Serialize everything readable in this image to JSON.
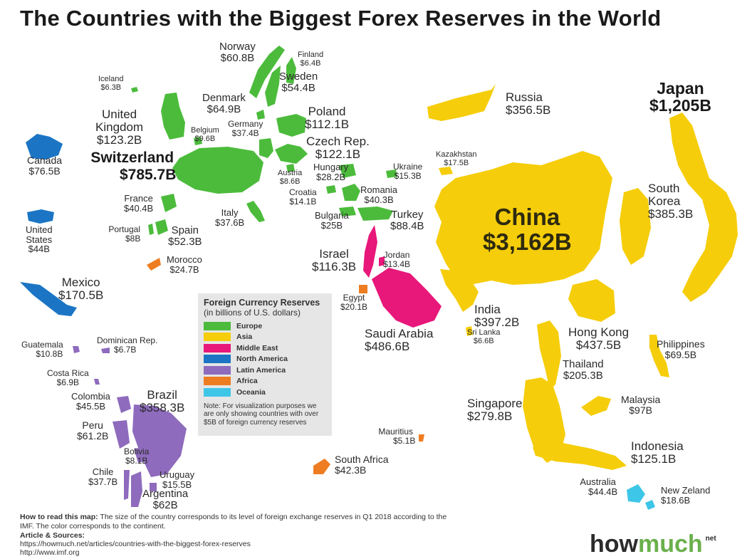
{
  "title": "The Countries with the Biggest Forex Reserves in the World",
  "colors": {
    "europe": "#4cbb3c",
    "asia": "#f5cd0a",
    "middle_east": "#e8177a",
    "north_america": "#1b75c4",
    "latin_america": "#8e6bbd",
    "africa": "#ee7d22",
    "oceania": "#3ec6e8"
  },
  "countries": {
    "norway": {
      "name": "Norway",
      "value": "$60.8B"
    },
    "finland": {
      "name": "Finland",
      "value": "$6.4B"
    },
    "iceland": {
      "name": "Iceland",
      "value": "$6.3B"
    },
    "sweden": {
      "name": "Sweden",
      "value": "$54.4B"
    },
    "denmark": {
      "name": "Denmark",
      "value": "$64.9B"
    },
    "uk": {
      "name1": "United",
      "name2": "Kingdom",
      "value": "$123.2B"
    },
    "germany": {
      "name": "Germany",
      "value": "$37.4B"
    },
    "belgium": {
      "name": "Belgium",
      "value": "$9.6B"
    },
    "poland": {
      "name": "Poland",
      "value": "$112.1B"
    },
    "czech": {
      "name": "Czech Rep.",
      "value": "$122.1B"
    },
    "switzerland": {
      "name": "Switzerland",
      "value": "$785.7B"
    },
    "austria": {
      "name": "Austria",
      "value": "$8.6B"
    },
    "hungary": {
      "name": "Hungary",
      "value": "$28.2B"
    },
    "ukraine": {
      "name": "Ukraine",
      "value": "$15.3B"
    },
    "kazakhstan": {
      "name": "Kazakhstan",
      "value": "$17.5B"
    },
    "croatia": {
      "name": "Croatia",
      "value": "$14.1B"
    },
    "romania": {
      "name": "Romania",
      "value": "$40.3B"
    },
    "france": {
      "name": "France",
      "value": "$40.4B"
    },
    "italy": {
      "name": "Italy",
      "value": "$37.6B"
    },
    "bulgaria": {
      "name": "Bulgaria",
      "value": "$25B"
    },
    "turkey": {
      "name": "Turkey",
      "value": "$88.4B"
    },
    "portugal": {
      "name": "Portugal",
      "value": "$8B"
    },
    "spain": {
      "name": "Spain",
      "value": "$52.3B"
    },
    "morocco": {
      "name": "Morocco",
      "value": "$24.7B"
    },
    "canada": {
      "name": "Canada",
      "value": "$76.5B"
    },
    "usa": {
      "name1": "United",
      "name2": "States",
      "value": "$44B"
    },
    "mexico": {
      "name": "Mexico",
      "value": "$170.5B"
    },
    "russia": {
      "name": "Russia",
      "value": "$356.5B"
    },
    "japan": {
      "name": "Japan",
      "value": "$1,205B"
    },
    "south_korea": {
      "name1": "South",
      "name2": "Korea",
      "value": "$385.3B"
    },
    "china": {
      "name": "China",
      "value": "$3,162B"
    },
    "israel": {
      "name": "Israel",
      "value": "$116.3B"
    },
    "jordan": {
      "name": "Jordan",
      "value": "$13.4B"
    },
    "egypt": {
      "name": "Egypt",
      "value": "$20.1B"
    },
    "saudi_arabia": {
      "name": "Saudi Arabia",
      "value": "$486.6B"
    },
    "india": {
      "name": "India",
      "value": "$397.2B"
    },
    "sri_lanka": {
      "name": "Sri Lanka",
      "value": "$6.6B"
    },
    "hong_kong": {
      "name": "Hong Kong",
      "value": "$437.5B"
    },
    "philippines": {
      "name": "Philippines",
      "value": "$69.5B"
    },
    "thailand": {
      "name": "Thailand",
      "value": "$205.3B"
    },
    "singapore": {
      "name": "Singapore",
      "value": "$279.8B"
    },
    "malaysia": {
      "name": "Malaysia",
      "value": "$97B"
    },
    "indonesia": {
      "name": "Indonesia",
      "value": "$125.1B"
    },
    "australia": {
      "name": "Australia",
      "value": "$44.4B"
    },
    "new_zealand": {
      "name": "New Zeland",
      "value": "$18.6B"
    },
    "mauritius": {
      "name": "Mauritius",
      "value": "$5.1B"
    },
    "south_africa": {
      "name": "South Africa",
      "value": "$42.3B"
    },
    "guatemala": {
      "name": "Guatemala",
      "value": "$10.8B"
    },
    "dominican": {
      "name": "Dominican Rep.",
      "value": "$6.7B"
    },
    "costa_rica": {
      "name": "Costa Rica",
      "value": "$6.9B"
    },
    "colombia": {
      "name": "Colombia",
      "value": "$45.5B"
    },
    "brazil": {
      "name": "Brazil",
      "value": "$358.3B"
    },
    "peru": {
      "name": "Peru",
      "value": "$61.2B"
    },
    "bolivia": {
      "name": "Bolivia",
      "value": "$8.1B"
    },
    "chile": {
      "name": "Chile",
      "value": "$37.7B"
    },
    "uruguay": {
      "name": "Uruguay",
      "value": "$15.5B"
    },
    "argentina": {
      "name": "Argentina",
      "value": "$62B"
    }
  },
  "legend": {
    "title": "Foreign Currency Reserves",
    "subtitle": "(in billions of U.S. dollars)",
    "items": [
      "Europe",
      "Asia",
      "Middle East",
      "North America",
      "Latin America",
      "Africa",
      "Oceania"
    ],
    "note": "Note: For visualization purposes we are only showing countries with over $5B of foreign currency reserves"
  },
  "footer": {
    "howto_label": "How to read this map:",
    "howto_text": "The size of the country corresponds to its level of foreign exchange reserves in Q1 2018 according to the IMF. The color corresponds to the continent.",
    "sources_label": "Article & Sources:",
    "source1": "https://howmuch.net/articles/countries-with-the-biggest-forex-reserves",
    "source2": "http://www.imf.org"
  },
  "logo": {
    "part1": "how",
    "part2": "much",
    "suffix": "net"
  }
}
